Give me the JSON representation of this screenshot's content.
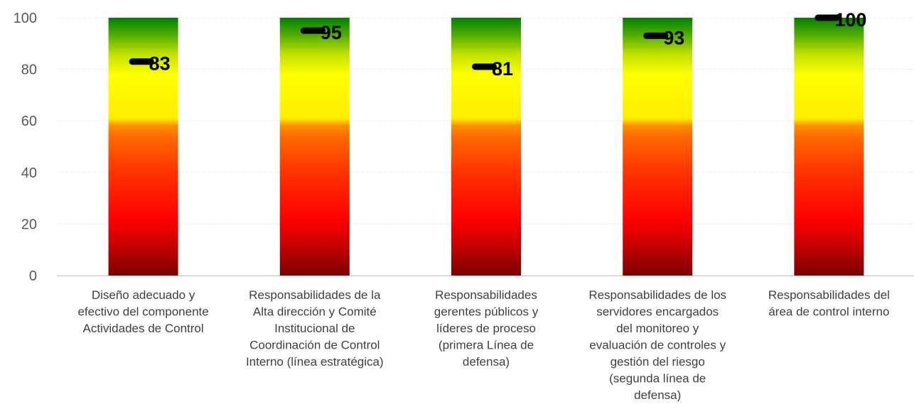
{
  "chart_data": {
    "type": "bar",
    "categories": [
      [
        "Diseño adecuado y",
        "efectivo del componente",
        "Actividades de Control"
      ],
      [
        "Responsabilidades de la",
        "Alta dirección y Comité",
        "Institucional de",
        "Coordinación de Control",
        "Interno (línea estratégica)"
      ],
      [
        "Responsabilidades",
        "gerentes públicos y",
        "líderes de proceso",
        "(primera Línea de",
        "defensa)"
      ],
      [
        "Responsabilidades de los",
        "servidores encargados",
        "del monitoreo y",
        "evaluación de controles y",
        "gestión del riesgo",
        "(segunda línea de",
        "defensa)"
      ],
      [
        "Responsabilidades del",
        "área de control interno"
      ]
    ],
    "values": [
      83,
      95,
      81,
      93,
      100
    ],
    "value_labels": [
      "83",
      "95",
      "81",
      "93",
      "100"
    ],
    "y_ticks": [
      0,
      20,
      40,
      60,
      80,
      100
    ],
    "y_tick_labels": [
      "0",
      "20",
      "40",
      "60",
      "80",
      "100"
    ],
    "ylim": [
      0,
      100
    ],
    "background_bands": "gradient from dark red (0) through red and orange (40-58) to yellow (60-80) and green (100)",
    "grid": true,
    "colors": {
      "dark_red": "#7a0000",
      "red": "#ff0000",
      "orange": "#ff6600",
      "yellow": "#ffff00",
      "green": "#008000",
      "marker": "#000000"
    }
  }
}
